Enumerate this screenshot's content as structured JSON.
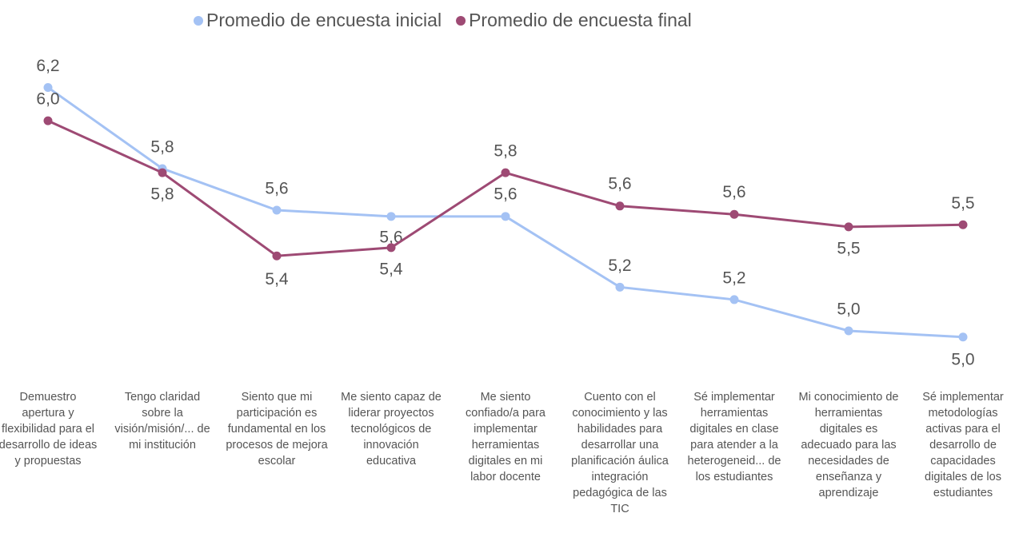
{
  "chart_data": {
    "type": "line",
    "categories": [
      "Demuestro apertura y flexibilidad para el desarrollo de ideas y propuestas",
      "Tengo claridad sobre la visión/misión/... de mi institución",
      "Siento que mi participación es fundamental en los procesos de mejora escolar",
      "Me siento capaz de liderar proyectos tecnológicos de innovación educativa",
      "Me siento confiado/a para implementar herramientas digitales en mi labor docente",
      "Cuento con el conocimiento y las habilidades para desarrollar una planificación áulica integración pedagógica de las TIC",
      "Sé implementar herramientas digitales en clase para atender a la heterogeneid... de los estudiantes",
      "Mi conocimiento de herramientas digitales es adecuado para las necesidades de enseñanza y aprendizaje",
      "Sé implementar metodologías activas para el desarrollo de capacidades digitales de los estudiantes"
    ],
    "series": [
      {
        "name": "Promedio de encuesta inicial",
        "color": "#a4c2f4",
        "values": [
          6.2,
          5.81,
          5.61,
          5.58,
          5.58,
          5.24,
          5.18,
          5.03,
          5.0
        ],
        "value_labels": [
          "6,2",
          "5,8",
          "5,6",
          "5,6",
          "5,6",
          "5,2",
          "5,2",
          "5,0",
          "5,0"
        ]
      },
      {
        "name": "Promedio de encuesta final",
        "color": "#9e4a74",
        "values": [
          6.04,
          5.79,
          5.39,
          5.43,
          5.79,
          5.63,
          5.59,
          5.53,
          5.54
        ],
        "value_labels": [
          "6,0",
          "5,8",
          "5,4",
          "5,4",
          "5,8",
          "5,6",
          "5,6",
          "5,5",
          "5,5"
        ]
      }
    ],
    "ylim": [
      4.93,
      6.39
    ],
    "legend": "top"
  }
}
